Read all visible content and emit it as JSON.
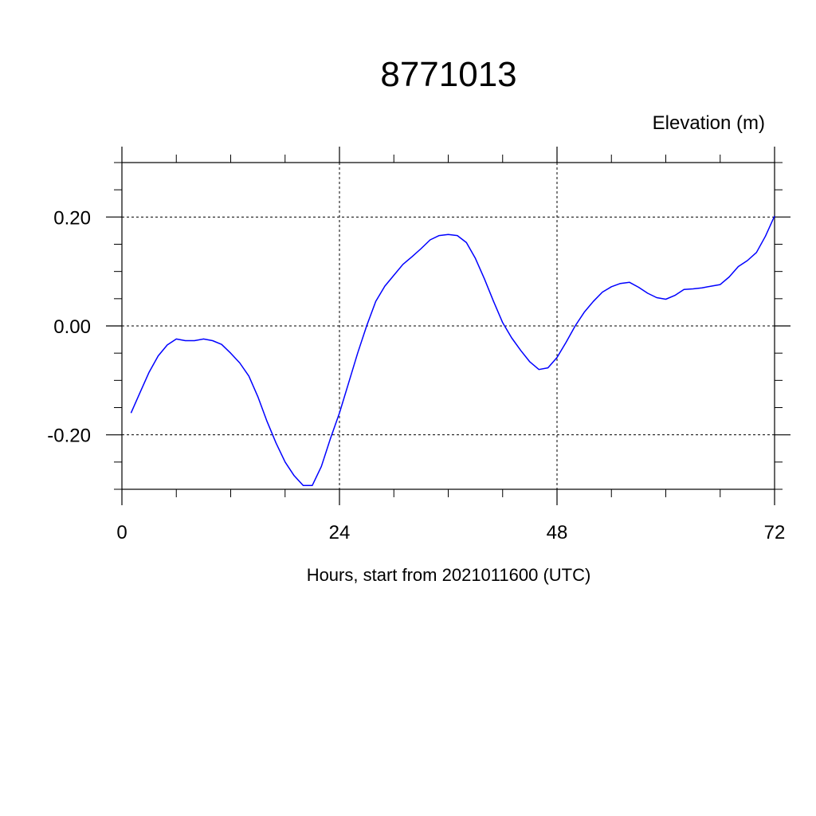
{
  "chart_data": {
    "type": "line",
    "title": "8771013",
    "ylabel": "Elevation (m)",
    "xlabel": "Hours, start from 2021011600 (UTC)",
    "xlim": [
      0,
      72
    ],
    "ylim": [
      -0.3,
      0.3
    ],
    "x_ticks": [
      0,
      24,
      48,
      72
    ],
    "x_tick_labels": [
      "0",
      "24",
      "48",
      "72"
    ],
    "y_ticks": [
      -0.2,
      0.0,
      0.2
    ],
    "y_tick_labels": [
      "-0.20",
      "0.00",
      "0.20"
    ],
    "grid": true,
    "line_color": "#0000ff",
    "series": [
      {
        "x": [
          1,
          2,
          3,
          4,
          5,
          6,
          7,
          8,
          9,
          10,
          11,
          12,
          13,
          14,
          15,
          16,
          17,
          18,
          19,
          20,
          21,
          22,
          23,
          24,
          25,
          26,
          27,
          28,
          29,
          30,
          31,
          32,
          33,
          34,
          35,
          36,
          37,
          38,
          39,
          40,
          41,
          42,
          43,
          44,
          45,
          46,
          47,
          48,
          49,
          50,
          51,
          52,
          53,
          54,
          55,
          56,
          57,
          58,
          59,
          60,
          61,
          62,
          63,
          64,
          65,
          66,
          67,
          68,
          69,
          70,
          71,
          72
        ],
        "y": [
          -0.16,
          -0.122,
          -0.085,
          -0.055,
          -0.035,
          -0.024,
          -0.027,
          -0.027,
          -0.024,
          -0.027,
          -0.034,
          -0.05,
          -0.068,
          -0.092,
          -0.13,
          -0.175,
          -0.215,
          -0.25,
          -0.275,
          -0.293,
          -0.293,
          -0.258,
          -0.207,
          -0.16,
          -0.105,
          -0.05,
          0.0,
          0.045,
          0.073,
          0.093,
          0.113,
          0.127,
          0.142,
          0.158,
          0.166,
          0.168,
          0.166,
          0.153,
          0.124,
          0.086,
          0.045,
          0.006,
          -0.022,
          -0.045,
          -0.066,
          -0.08,
          -0.077,
          -0.058,
          -0.03,
          0.0,
          0.025,
          0.045,
          0.062,
          0.072,
          0.078,
          0.08,
          0.071,
          0.06,
          0.052,
          0.049,
          0.056,
          0.067,
          0.068,
          0.07,
          0.073,
          0.076,
          0.09,
          0.109,
          0.12,
          0.135,
          0.165,
          0.202
        ]
      }
    ]
  }
}
